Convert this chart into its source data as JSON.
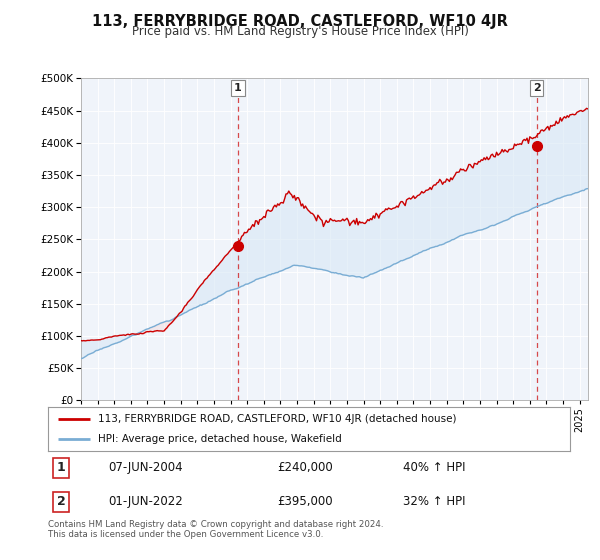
{
  "title": "113, FERRYBRIDGE ROAD, CASTLEFORD, WF10 4JR",
  "subtitle": "Price paid vs. HM Land Registry's House Price Index (HPI)",
  "legend_line1": "113, FERRYBRIDGE ROAD, CASTLEFORD, WF10 4JR (detached house)",
  "legend_line2": "HPI: Average price, detached house, Wakefield",
  "note": "Contains HM Land Registry data © Crown copyright and database right 2024.\nThis data is licensed under the Open Government Licence v3.0.",
  "point1_label": "1",
  "point1_date": "07-JUN-2004",
  "point1_price": "£240,000",
  "point1_hpi": "40% ↑ HPI",
  "point1_x": 2004.44,
  "point1_y": 240000,
  "point2_label": "2",
  "point2_date": "01-JUN-2022",
  "point2_price": "£395,000",
  "point2_hpi": "32% ↑ HPI",
  "point2_x": 2022.42,
  "point2_y": 395000,
  "red_color": "#cc0000",
  "blue_color": "#7aadd4",
  "fill_color": "#d8e8f5",
  "bg_color": "#ffffff",
  "grid_color": "#d0d0d0",
  "ylim": [
    0,
    500000
  ],
  "xlim": [
    1995.0,
    2025.5
  ]
}
